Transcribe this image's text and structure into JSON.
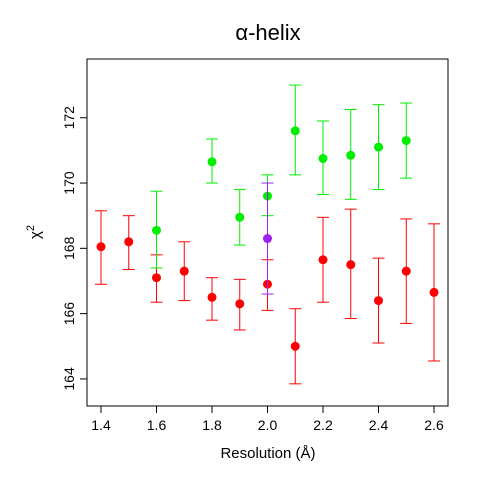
{
  "chart_data": {
    "type": "scatter",
    "title": "α-helix",
    "xlabel": "Resolution (Å)",
    "xlabel_main": "Resolution (",
    "xlabel_unit": "Å",
    "xlabel_close": ")",
    "ylabel": "χ2",
    "ylabel_base": "χ",
    "ylabel_sup": "2",
    "xlim": [
      1.4,
      2.6
    ],
    "ylim": [
      163.6,
      173.4
    ],
    "x_ticks": [
      1.4,
      1.6,
      1.8,
      2.0,
      2.2,
      2.4,
      2.6
    ],
    "x_tick_labels": [
      "1.4",
      "1.6",
      "1.8",
      "2.0",
      "2.2",
      "2.4",
      "2.6"
    ],
    "y_ticks": [
      164,
      166,
      168,
      170,
      172
    ],
    "y_tick_labels": [
      "164",
      "166",
      "168",
      "170",
      "172"
    ],
    "grid": false,
    "error_bars": true,
    "series": [
      {
        "color": "#ff0000",
        "points": [
          {
            "x": 1.4,
            "y": 168.05,
            "lo": 166.9,
            "hi": 169.15
          },
          {
            "x": 1.5,
            "y": 168.2,
            "lo": 167.35,
            "hi": 169.0
          },
          {
            "x": 1.6,
            "y": 167.1,
            "lo": 166.35,
            "hi": 167.8
          },
          {
            "x": 1.7,
            "y": 167.3,
            "lo": 166.4,
            "hi": 168.2
          },
          {
            "x": 1.8,
            "y": 166.5,
            "lo": 165.8,
            "hi": 167.1
          },
          {
            "x": 1.9,
            "y": 166.3,
            "lo": 165.5,
            "hi": 167.05
          },
          {
            "x": 2.0,
            "y": 166.9,
            "lo": 166.1,
            "hi": 167.65
          },
          {
            "x": 2.1,
            "y": 165.0,
            "lo": 163.85,
            "hi": 166.15
          },
          {
            "x": 2.2,
            "y": 167.65,
            "lo": 166.35,
            "hi": 168.95
          },
          {
            "x": 2.3,
            "y": 167.5,
            "lo": 165.85,
            "hi": 169.2
          },
          {
            "x": 2.4,
            "y": 166.4,
            "lo": 165.1,
            "hi": 167.7
          },
          {
            "x": 2.5,
            "y": 167.3,
            "lo": 165.7,
            "hi": 168.9
          },
          {
            "x": 2.6,
            "y": 166.65,
            "lo": 164.55,
            "hi": 168.75
          }
        ]
      },
      {
        "color": "#00ee00",
        "points": [
          {
            "x": 1.6,
            "y": 168.55,
            "lo": 167.4,
            "hi": 169.75
          },
          {
            "x": 1.8,
            "y": 170.65,
            "lo": 170.0,
            "hi": 171.35
          },
          {
            "x": 1.9,
            "y": 168.95,
            "lo": 168.1,
            "hi": 169.8
          },
          {
            "x": 2.0,
            "y": 169.6,
            "lo": 169.0,
            "hi": 170.25
          },
          {
            "x": 2.1,
            "y": 171.6,
            "lo": 170.25,
            "hi": 173.0
          },
          {
            "x": 2.2,
            "y": 170.75,
            "lo": 169.65,
            "hi": 171.9
          },
          {
            "x": 2.3,
            "y": 170.85,
            "lo": 169.5,
            "hi": 172.25
          },
          {
            "x": 2.4,
            "y": 171.1,
            "lo": 169.8,
            "hi": 172.4
          },
          {
            "x": 2.5,
            "y": 171.3,
            "lo": 170.15,
            "hi": 172.45
          }
        ]
      },
      {
        "color": "#a020f0",
        "points": [
          {
            "x": 2.0,
            "y": 168.3,
            "lo": 166.6,
            "hi": 170.0
          }
        ]
      }
    ]
  }
}
